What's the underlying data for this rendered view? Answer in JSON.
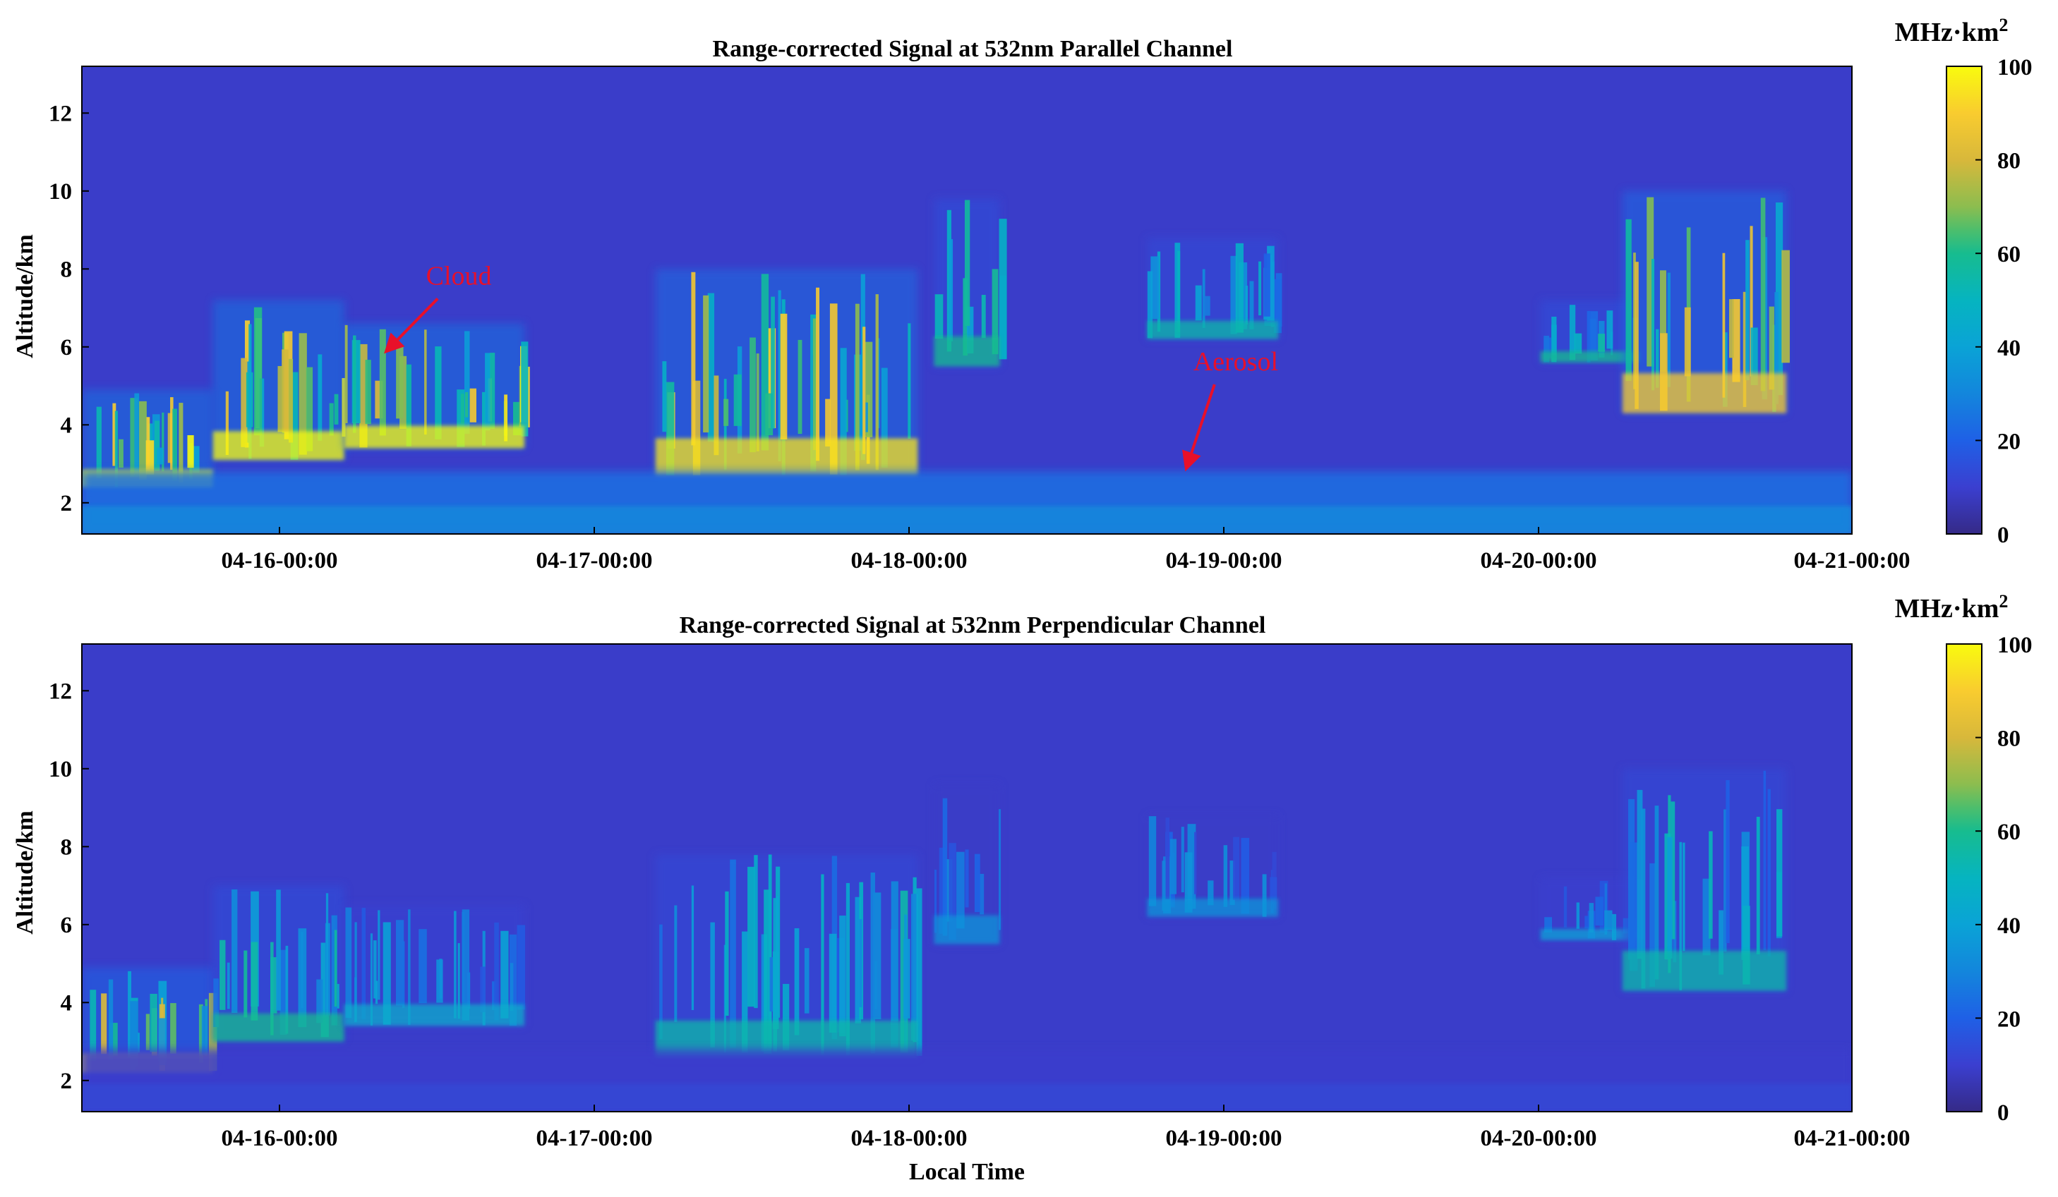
{
  "chart_data": [
    {
      "type": "heatmap",
      "title": "Range-corrected Signal at 532nm Parallel Channel",
      "xlabel": "",
      "ylabel": "Altitude/km",
      "x_tick_labels": [
        "04-16-00:00",
        "04-17-00:00",
        "04-18-00:00",
        "04-19-00:00",
        "04-20-00:00",
        "04-21-00:00"
      ],
      "xlim_days": [
        15.6,
        21.0
      ],
      "y_ticks": [
        2,
        4,
        6,
        8,
        10,
        12
      ],
      "ylim": [
        1.2,
        13.2
      ],
      "colorbar": {
        "unit": "MHz·km",
        "unit_sup": "2",
        "ticks": [
          0,
          20,
          40,
          60,
          80,
          100
        ],
        "range": [
          0,
          100
        ],
        "colormap": "parula"
      },
      "annotations": [
        {
          "text": "Cloud",
          "color": "#e8102a",
          "x_day": 16.75,
          "y_km": 7.6,
          "target_x_day": 16.53,
          "target_y_km": 5.9
        },
        {
          "text": "Aerosol",
          "color": "#e8102a",
          "x_day": 19.12,
          "y_km": 5.4,
          "target_x_day": 18.97,
          "target_y_km": 2.9
        }
      ],
      "features": [
        {
          "kind": "cloud",
          "t_start": 15.6,
          "t_end": 16.0,
          "z_bottom": 2.4,
          "z_top": 4.9,
          "intensity": 100
        },
        {
          "kind": "cloud",
          "t_start": 16.0,
          "t_end": 16.4,
          "z_bottom": 3.1,
          "z_top": 7.2,
          "intensity": 100
        },
        {
          "kind": "cloud",
          "t_start": 16.4,
          "t_end": 16.95,
          "z_bottom": 3.4,
          "z_top": 6.6,
          "intensity": 100
        },
        {
          "kind": "cloud",
          "t_start": 17.35,
          "t_end": 18.15,
          "z_bottom": 2.7,
          "z_top": 8.0,
          "intensity": 95
        },
        {
          "kind": "cloud",
          "t_start": 18.2,
          "t_end": 18.4,
          "z_bottom": 5.5,
          "z_top": 9.8,
          "intensity": 60
        },
        {
          "kind": "cloud",
          "t_start": 18.85,
          "t_end": 19.25,
          "z_bottom": 6.2,
          "z_top": 8.8,
          "intensity": 55
        },
        {
          "kind": "cloud",
          "t_start": 20.05,
          "t_end": 20.35,
          "z_bottom": 5.6,
          "z_top": 7.2,
          "intensity": 60
        },
        {
          "kind": "cloud",
          "t_start": 20.3,
          "t_end": 20.8,
          "z_bottom": 4.3,
          "z_top": 10.0,
          "intensity": 90
        },
        {
          "kind": "aerosol",
          "t_start": 15.6,
          "t_end": 21.0,
          "z_bottom": 1.2,
          "z_top": 2.8,
          "intensity": 30
        }
      ]
    },
    {
      "type": "heatmap",
      "title": "Range-corrected Signal at 532nm Perpendicular Channel",
      "xlabel": "Local Time",
      "ylabel": "Altitude/km",
      "x_tick_labels": [
        "04-16-00:00",
        "04-17-00:00",
        "04-18-00:00",
        "04-19-00:00",
        "04-20-00:00",
        "04-21-00:00"
      ],
      "xlim_days": [
        15.6,
        21.0
      ],
      "y_ticks": [
        2,
        4,
        6,
        8,
        10,
        12
      ],
      "ylim": [
        1.2,
        13.2
      ],
      "colorbar": {
        "unit": "MHz·km",
        "unit_sup": "2",
        "ticks": [
          0,
          20,
          40,
          60,
          80,
          100
        ],
        "range": [
          0,
          100
        ],
        "colormap": "parula"
      },
      "annotations": [],
      "features": [
        {
          "kind": "cloud",
          "t_start": 15.6,
          "t_end": 16.0,
          "z_bottom": 2.2,
          "z_top": 4.9,
          "intensity": 85
        },
        {
          "kind": "cloud",
          "t_start": 16.0,
          "t_end": 16.4,
          "z_bottom": 3.0,
          "z_top": 7.0,
          "intensity": 60
        },
        {
          "kind": "cloud",
          "t_start": 16.4,
          "t_end": 16.95,
          "z_bottom": 3.4,
          "z_top": 6.5,
          "intensity": 45
        },
        {
          "kind": "cloud",
          "t_start": 17.35,
          "t_end": 18.15,
          "z_bottom": 2.6,
          "z_top": 7.8,
          "intensity": 55
        },
        {
          "kind": "cloud",
          "t_start": 18.2,
          "t_end": 18.4,
          "z_bottom": 5.5,
          "z_top": 9.6,
          "intensity": 35
        },
        {
          "kind": "cloud",
          "t_start": 18.85,
          "t_end": 19.25,
          "z_bottom": 6.2,
          "z_top": 8.8,
          "intensity": 35
        },
        {
          "kind": "cloud",
          "t_start": 20.05,
          "t_end": 20.35,
          "z_bottom": 5.6,
          "z_top": 7.2,
          "intensity": 40
        },
        {
          "kind": "cloud",
          "t_start": 20.3,
          "t_end": 20.8,
          "z_bottom": 4.3,
          "z_top": 10.0,
          "intensity": 55
        },
        {
          "kind": "aerosol",
          "t_start": 15.6,
          "t_end": 21.0,
          "z_bottom": 1.2,
          "z_top": 2.8,
          "intensity": 12
        }
      ]
    }
  ]
}
